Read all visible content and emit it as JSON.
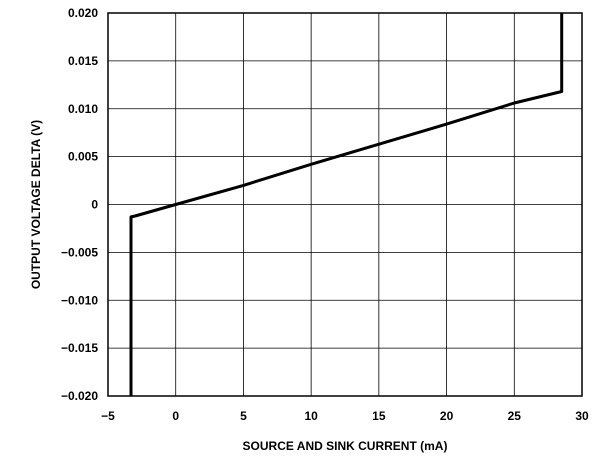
{
  "chart_data": {
    "type": "line",
    "title": "",
    "xlabel": "SOURCE AND SINK CURRENT (mA)",
    "ylabel": "OUTPUT VOLTAGE DELTA (V)",
    "xlim": [
      -5,
      30
    ],
    "ylim": [
      -0.02,
      0.02
    ],
    "grid": true,
    "x_ticks": [
      -5,
      0,
      5,
      10,
      15,
      20,
      25,
      30
    ],
    "x_tick_labels": [
      "−5",
      "0",
      "5",
      "10",
      "15",
      "20",
      "25",
      "30"
    ],
    "y_ticks": [
      0.02,
      0.015,
      0.01,
      0.005,
      0,
      -0.005,
      -0.01,
      -0.015,
      -0.02
    ],
    "y_tick_labels": [
      "0.020",
      "0.015",
      "0.010",
      "0.005",
      "0",
      "−0.005",
      "−0.010",
      "−0.015",
      "−0.020"
    ],
    "series": [
      {
        "x": [
          -3.3,
          -3.3,
          -3.0,
          0,
          5,
          10,
          15,
          20,
          25,
          28.5,
          28.5
        ],
        "y": [
          -0.02,
          -0.0013,
          -0.0012,
          0,
          0.002,
          0.0042,
          0.0063,
          0.0084,
          0.0106,
          0.0118,
          0.02
        ]
      }
    ],
    "line_color": "#000000"
  }
}
